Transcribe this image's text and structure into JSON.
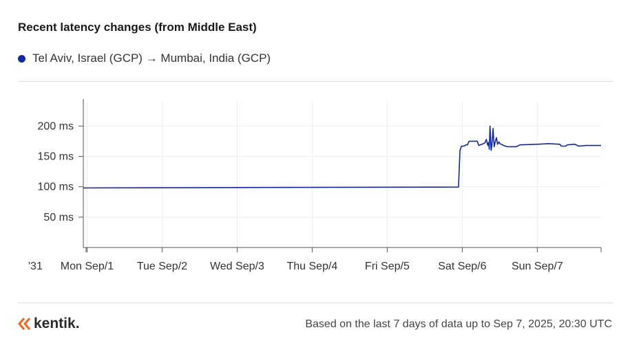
{
  "colors": {
    "series": "#1428a0",
    "grid": "#eeeeee",
    "axis": "#555555",
    "brand_orange": "#f26722"
  },
  "header": {
    "title": "Recent latency changes (from Middle East)"
  },
  "legend": {
    "label": "Tel Aviv, Israel (GCP) → Mumbai, India (GCP)"
  },
  "footer": {
    "brand": "kentik.",
    "note": "Based on the last 7 days of data up to Sep 7, 2025, 20:30 UTC"
  },
  "chart_data": {
    "type": "line",
    "title": "Recent latency changes (from Middle East)",
    "xlabel": "",
    "ylabel": "",
    "x_unit": "days since Aug 31, 00:00 UTC",
    "xlim": [
      0.95,
      7.85
    ],
    "ylim": [
      0,
      240
    ],
    "grid": true,
    "legend_position": "top-left",
    "x_ticks": [
      {
        "value": 1,
        "label": "Mon Sep/1"
      },
      {
        "value": 2,
        "label": "Tue Sep/2"
      },
      {
        "value": 3,
        "label": "Wed Sep/3"
      },
      {
        "value": 4,
        "label": "Thu Sep/4"
      },
      {
        "value": 5,
        "label": "Fri Sep/5"
      },
      {
        "value": 6,
        "label": "Sat Sep/6"
      },
      {
        "value": 7,
        "label": "Sun Sep/7"
      }
    ],
    "x_tick_partial": "'31",
    "y_ticks": [
      {
        "value": 50,
        "label": "50 ms"
      },
      {
        "value": 100,
        "label": "100 ms"
      },
      {
        "value": 150,
        "label": "150 ms"
      },
      {
        "value": 200,
        "label": "200 ms"
      }
    ],
    "series": [
      {
        "name": "Tel Aviv, Israel (GCP) → Mumbai, India (GCP)",
        "x": [
          0.95,
          2.0,
          3.0,
          4.0,
          5.0,
          5.95,
          5.97,
          5.99,
          6.02,
          6.05,
          6.07,
          6.09,
          6.2,
          6.22,
          6.3,
          6.32,
          6.34,
          6.35,
          6.36,
          6.37,
          6.385,
          6.395,
          6.41,
          6.425,
          6.44,
          6.455,
          6.47,
          6.49,
          6.5,
          6.52,
          6.55,
          6.6,
          6.72,
          6.77,
          7.0,
          7.15,
          7.3,
          7.32,
          7.38,
          7.4,
          7.5,
          7.55,
          7.65,
          7.85
        ],
        "values": [
          98,
          98.4,
          98.7,
          99,
          99.3,
          99.5,
          160,
          167,
          167,
          169,
          169,
          175,
          175,
          168,
          172,
          178,
          168,
          173,
          162,
          200,
          160,
          168,
          196,
          166,
          174,
          181,
          170,
          174,
          171,
          170,
          168,
          166,
          166,
          169,
          170,
          171,
          170,
          167,
          167,
          169,
          170,
          167,
          168,
          168
        ]
      }
    ]
  }
}
